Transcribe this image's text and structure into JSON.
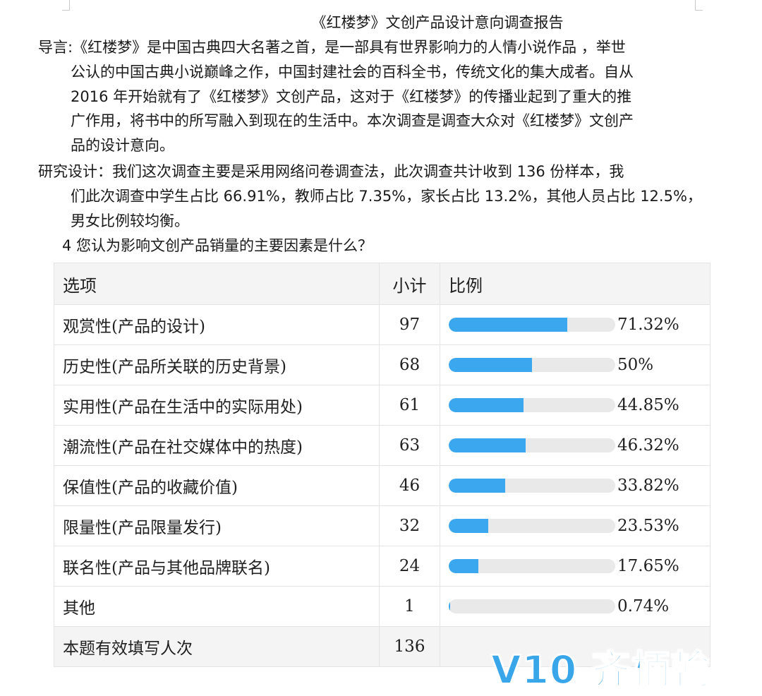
{
  "title": "《红楼梦》文创产品设计意向调查报告",
  "intro_lines": [
    "导言:《红楼梦》是中国古典四大名著之首，是一部具有世界影响力的人情小说作品 ，举世",
    "公认的中国古典小说巅峰之作，中国封建社会的百科全书，传统文化的集大成者。自从",
    "2016 年开始就有了《红楼梦》文创产品，这对于《红楼梦》的传播业起到了重大的推",
    "广作用，将书中的所写融入到现在的生活中。本次调查是调查大众对《红楼梦》文创产",
    "品的设计意向。"
  ],
  "design_lines": [
    "研究设计：我们这次调查主要是采用网络问卷调查法，此次调查共计收到 136 份样本，我",
    "们此次调查中学生占比 66.91%，教师占比 7.35%，家长占比 13.2%，其他人员占比 12.5%，",
    "男女比例较均衡。"
  ],
  "question": "4  您认为影响文创产品销量的主要因素是什么？",
  "table": {
    "headers": {
      "option": "选项",
      "count": "小计",
      "ratio": "比例"
    },
    "rows": [
      {
        "option": "观赏性(产品的设计)",
        "count": "97",
        "ratio": "71.32%",
        "fraction": 0.7132
      },
      {
        "option": "历史性(产品所关联的历史背景)",
        "count": "68",
        "ratio": "50%",
        "fraction": 0.5
      },
      {
        "option": "实用性(产品在生活中的实际用处)",
        "count": "61",
        "ratio": "44.85%",
        "fraction": 0.4485
      },
      {
        "option": "潮流性(产品在社交媒体中的热度)",
        "count": "63",
        "ratio": "46.32%",
        "fraction": 0.4632
      },
      {
        "option": "保值性(产品的收藏价值)",
        "count": "46",
        "ratio": "33.82%",
        "fraction": 0.3382
      },
      {
        "option": "限量性(产品限量发行)",
        "count": "32",
        "ratio": "23.53%",
        "fraction": 0.2353
      },
      {
        "option": "联名性(产品与其他品牌联名)",
        "count": "24",
        "ratio": "17.65%",
        "fraction": 0.1765
      },
      {
        "option": "其他",
        "count": "1",
        "ratio": "0.74%",
        "fraction": 0.0074
      }
    ],
    "total": {
      "label": "本题有效填写人次",
      "count": "136"
    }
  },
  "colors": {
    "bar_fill": "#3aa7ef",
    "bar_track": "#e9e9ea",
    "header_bg": "#f4f4f4",
    "watermark": "#3aa6ea"
  },
  "watermark": "V10 齐柄翰"
}
